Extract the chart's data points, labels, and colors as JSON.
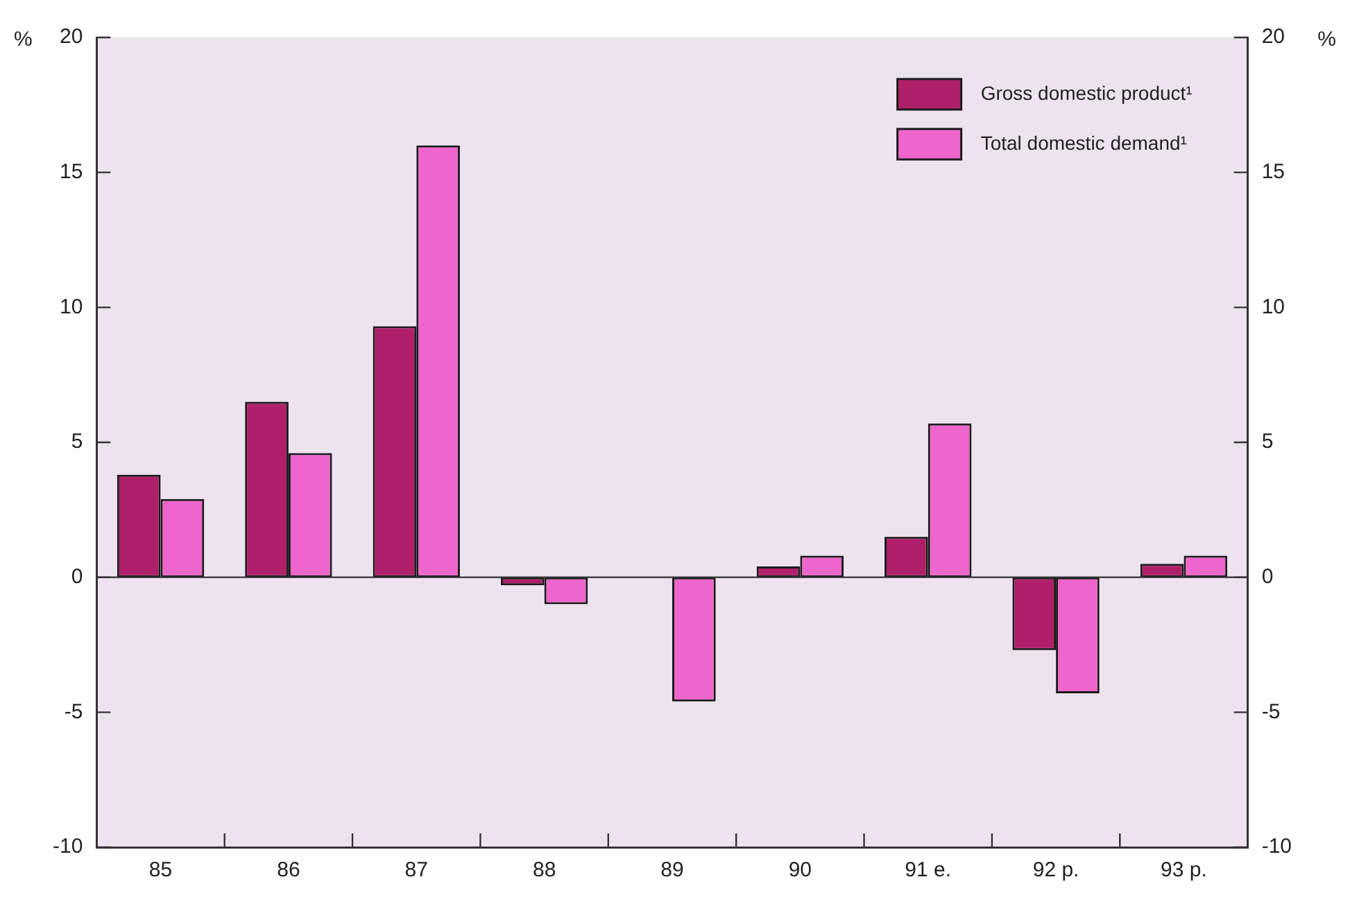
{
  "chart_data": {
    "type": "bar",
    "categories": [
      "85",
      "86",
      "87",
      "88",
      "89",
      "90",
      "91 e.",
      "92 p.",
      "93 p."
    ],
    "series": [
      {
        "name": "Gross domestic product¹",
        "color": "#b0206a",
        "values": [
          3.8,
          6.5,
          9.3,
          -0.3,
          0,
          0.4,
          1.5,
          -2.7,
          0.5
        ]
      },
      {
        "name": "Total domestic demand¹",
        "color": "#ee66cc",
        "values": [
          2.9,
          4.6,
          16.0,
          -1.0,
          -4.6,
          0.8,
          5.7,
          -4.3,
          0.8
        ]
      }
    ],
    "ylabel": "%",
    "y2label": "%",
    "ylim": [
      -10,
      20
    ],
    "yticks": [
      -10,
      -5,
      0,
      5,
      10,
      15,
      20
    ],
    "y2lim": [
      -10,
      20
    ],
    "y2ticks": [
      -10,
      -5,
      0,
      5,
      10,
      15,
      20
    ],
    "ref_lines": [
      {
        "axis": "y",
        "value": 0,
        "color": "#333333"
      }
    ],
    "grid": false,
    "legend": "top right"
  }
}
